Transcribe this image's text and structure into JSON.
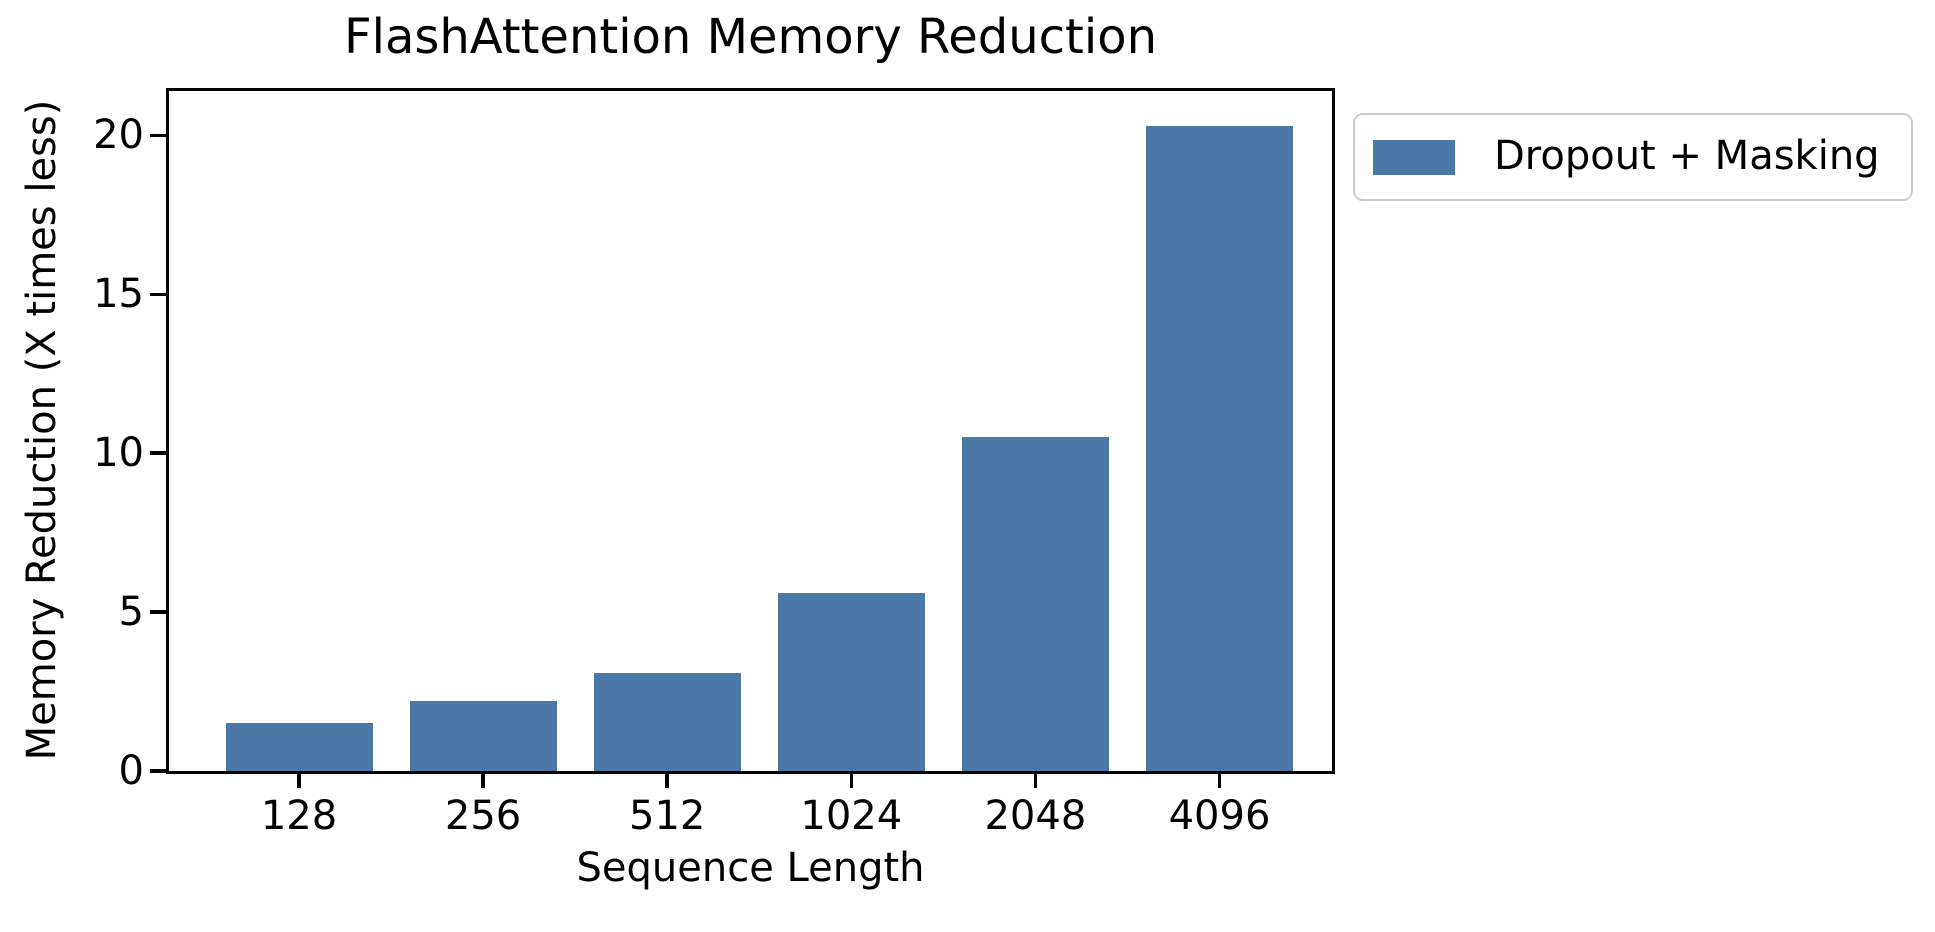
{
  "figure": {
    "background": "#ffffff"
  },
  "legend": {
    "label": "Dropout + Masking",
    "swatch_color": "#4C78A8",
    "border_color": "#cccccc",
    "position": "outside upper right"
  },
  "chart_data": {
    "type": "bar",
    "title": "FlashAttention Memory Reduction",
    "categories": [
      "128",
      "256",
      "512",
      "1024",
      "2048",
      "4096"
    ],
    "series": [
      {
        "name": "Dropout + Masking",
        "values": [
          1.5,
          2.2,
          3.1,
          5.6,
          10.5,
          20.3
        ]
      }
    ],
    "xlabel": "Sequence Length",
    "ylabel": "Memory Reduction (X times less)",
    "ylim": [
      0,
      21.4
    ],
    "yticks": [
      0,
      5,
      10,
      15,
      20
    ],
    "bar_color": "#4C78A8",
    "grid": false,
    "legend_position": "upper right, outside axes"
  }
}
